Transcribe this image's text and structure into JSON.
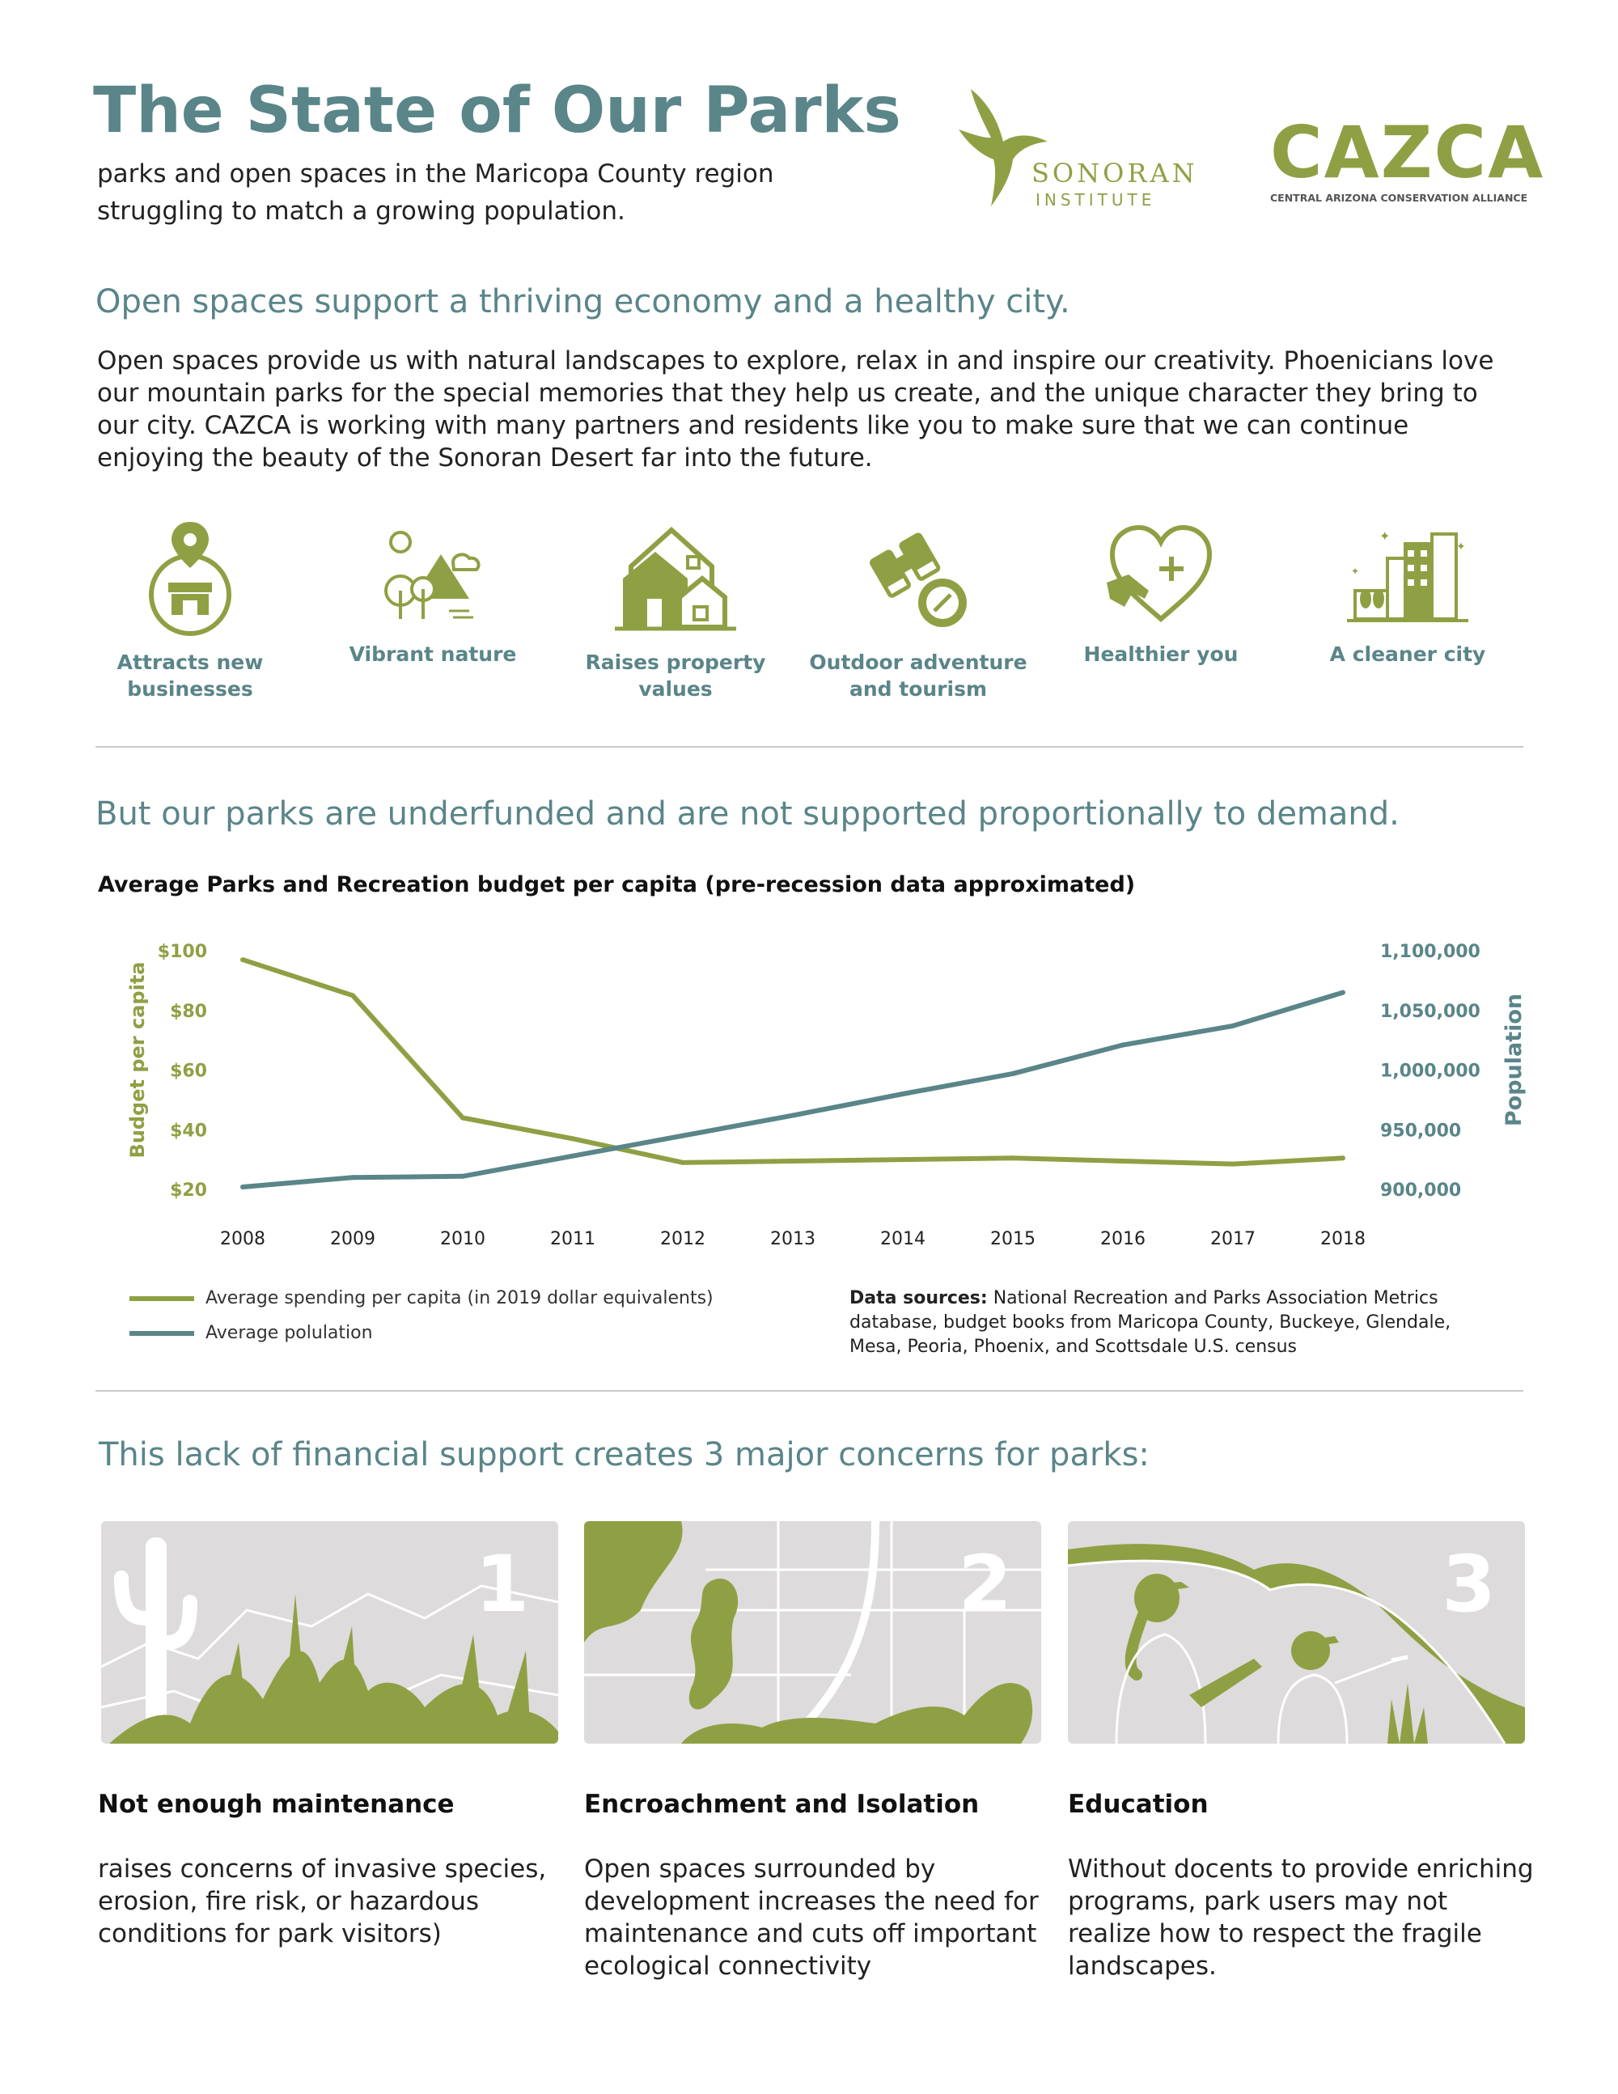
{
  "header": {
    "title": "The State of Our Parks",
    "subtitle": "parks and open spaces in the Maricopa County region struggling to match a growing population.",
    "logo_sonoran_line1": "SONORAN",
    "logo_sonoran_line2": "INSTITUTE",
    "logo_cazca": "CAZCA",
    "logo_cazca_tagline": "CENTRAL ARIZONA CONSERVATION ALLIANCE"
  },
  "section1": {
    "heading": "Open spaces support a thriving economy and a healthy city.",
    "body": "Open spaces provide us with natural landscapes to explore, relax in and inspire our creativity. Phoenicians love our mountain parks for the special memories that they help us create, and the unique character they bring to our city. CAZCA is working with many partners and residents like you to make sure that we can continue enjoying the beauty of the Sonoran Desert far into the future.",
    "benefits": [
      {
        "icon": "map-pin-store-icon",
        "label": "Attracts new businesses"
      },
      {
        "icon": "mountains-trees-icon",
        "label": "Vibrant nature"
      },
      {
        "icon": "houses-icon",
        "label": "Raises property values"
      },
      {
        "icon": "binoculars-compass-icon",
        "label": "Outdoor adventure and tourism"
      },
      {
        "icon": "heart-hand-icon",
        "label": "Healthier you"
      },
      {
        "icon": "city-buildings-icon",
        "label": "A cleaner city"
      }
    ]
  },
  "section2": {
    "heading": "But our parks are underfunded and are not supported proportionally to demand.",
    "sources_label": "Data sources:",
    "sources_text": "National Recreation and Parks Association Metrics database, budget books from Maricopa County, Buckeye, Glendale, Mesa, Peoria, Phoenix, and Scottsdale U.S. census"
  },
  "chart_data": {
    "type": "line",
    "title": "Average Parks and Recreation budget per capita (pre-recession data approximated)",
    "x": [
      "2008",
      "2009",
      "2010",
      "2011",
      "2012",
      "2013",
      "2014",
      "2015",
      "2016",
      "2017",
      "2018"
    ],
    "y_left_label": "Budget per capita",
    "y_left_ticks": [
      "$20",
      "$40",
      "$60",
      "$80",
      "$100"
    ],
    "y_left_range": [
      20,
      100
    ],
    "y_right_label": "Population",
    "y_right_ticks": [
      "900,000",
      "950,000",
      "1,000,000",
      "1,050,000",
      "1,100,000"
    ],
    "y_right_range": [
      900000,
      1100000
    ],
    "series": [
      {
        "name": "Average spending per capita (in 2019 dollar equivalents)",
        "axis": "left",
        "color": "#8fa044",
        "values": [
          97,
          85,
          44,
          37,
          29,
          29.5,
          30,
          30.5,
          29.5,
          28.5,
          30.5
        ]
      },
      {
        "name": "Average polulation",
        "axis": "right",
        "color": "#5a8589",
        "values": [
          902000,
          910000,
          911000,
          928000,
          945000,
          962000,
          980000,
          997000,
          1021000,
          1037000,
          1065000
        ]
      }
    ],
    "legend": "bottom-left"
  },
  "section3": {
    "heading": "This lack of financial support creates 3 major concerns for parks:",
    "concerns": [
      {
        "number": "1",
        "title": "Not enough maintenance",
        "text": "raises concerns of invasive species, erosion, fire risk, or hazardous conditions for park visitors)"
      },
      {
        "number": "2",
        "title": "Encroachment and Isolation",
        "text": "Open spaces surrounded by development increases the need for maintenance and cuts off important ecological connectivity"
      },
      {
        "number": "3",
        "title": "Education",
        "text": "Without docents to provide enriching programs, park users may not realize how to respect the fragile landscapes."
      }
    ]
  }
}
